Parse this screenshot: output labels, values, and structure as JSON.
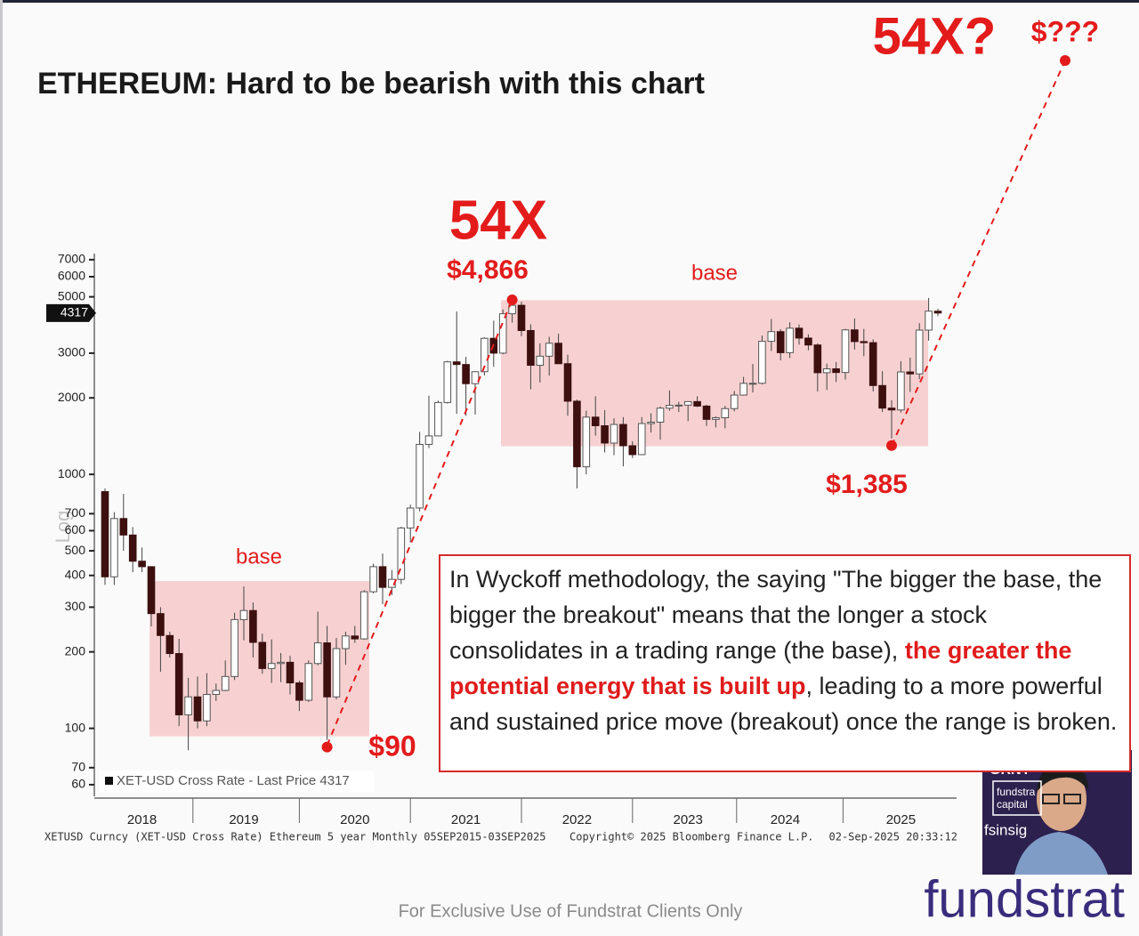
{
  "chart_data": {
    "type": "candlestick",
    "title": "ETHEREUM: Hard to be bearish with this chart",
    "y_label": "Log",
    "log_scale": true,
    "ylim": [
      54,
      7400
    ],
    "yticks": [
      60,
      70,
      100,
      200,
      300,
      400,
      500,
      600,
      700,
      1000,
      2000,
      3000,
      5000,
      6000,
      7000
    ],
    "xticks": [
      {
        "value": 4,
        "label": "2018"
      },
      {
        "value": 15,
        "label": "2019"
      },
      {
        "value": 27,
        "label": "2020"
      },
      {
        "value": 39,
        "label": "2021"
      },
      {
        "value": 51,
        "label": "2022"
      },
      {
        "value": 63,
        "label": "2023"
      },
      {
        "value": 73.5,
        "label": "2024"
      },
      {
        "value": 86,
        "label": "2025"
      }
    ],
    "categories": [
      null,
      null,
      null,
      null,
      null,
      null,
      null,
      null,
      null,
      null,
      null,
      null,
      null,
      null,
      null,
      null,
      null,
      null,
      null,
      null,
      null,
      null,
      null,
      null,
      null,
      null,
      null,
      null,
      null,
      null,
      null,
      null,
      null,
      null,
      null,
      null,
      null,
      null,
      null,
      null,
      null,
      null,
      null,
      null,
      null,
      null,
      null,
      null,
      null,
      null,
      null,
      null,
      null,
      null,
      null,
      null,
      null,
      null,
      null,
      null,
      null,
      null,
      null,
      null,
      null,
      null,
      null,
      null,
      null,
      null,
      null,
      null,
      null,
      null,
      null,
      null,
      null,
      null,
      null,
      null,
      null,
      null,
      null,
      null,
      null,
      null,
      null,
      null,
      null,
      null,
      null
    ],
    "series": [
      {
        "name": "XET-USD Cross Rate - Last Price 4317",
        "up_color": "#ffffff",
        "down_color": "#3d0f0f",
        "open": [
          855,
          395,
          670,
          577,
          455,
          433,
          283,
          232,
          197,
          113,
          133,
          107,
          136,
          141,
          160,
          268,
          291,
          218,
          172,
          180,
          182,
          151,
          129,
          180,
          217,
          133,
          206,
          231,
          225,
          345,
          433,
          359,
          386,
          615,
          737,
          1312,
          1417,
          1918,
          2773,
          2707,
          2275,
          2536,
          3433,
          3001,
          4288,
          4630,
          3683,
          2688,
          2919,
          3282,
          2727,
          1941,
          1071,
          1680,
          1554,
          1328,
          1572,
          1296,
          1196,
          1585,
          1605,
          1822,
          1869,
          1873,
          1934,
          1857,
          1646,
          1671,
          1815,
          2052,
          2282,
          2283,
          3340,
          3647,
          3013,
          3762,
          3440,
          3231,
          2513,
          2603,
          2518,
          3705,
          3332,
          3300,
          2237,
          1823,
          1793,
          2530,
          2486,
          3698,
          4390
        ],
        "high": [
          880,
          710,
          838,
          620,
          515,
          435,
          300,
          240,
          225,
          158,
          160,
          165,
          150,
          185,
          285,
          362,
          313,
          236,
          224,
          198,
          193,
          154,
          185,
          288,
          253,
          227,
          240,
          253,
          350,
          445,
          488,
          420,
          622,
          760,
          1470,
          2040,
          1950,
          2800,
          4380,
          2900,
          2550,
          3470,
          4030,
          4460,
          4866,
          4780,
          3900,
          3280,
          3480,
          3580,
          2960,
          1970,
          1780,
          2030,
          1790,
          1660,
          1680,
          1350,
          1680,
          1740,
          1850,
          2140,
          1930,
          1940,
          2030,
          1880,
          1690,
          1860,
          2130,
          2420,
          2720,
          3520,
          4090,
          3730,
          3970,
          3890,
          3560,
          3280,
          2730,
          2770,
          3740,
          4110,
          3740,
          3400,
          2550,
          1960,
          2790,
          2880,
          3940,
          4950,
          4490
        ],
        "low": [
          367,
          367,
          500,
          412,
          412,
          252,
          167,
          190,
          102,
          82,
          100,
          102,
          128,
          140,
          155,
          222,
          190,
          164,
          151,
          152,
          136,
          117,
          127,
          177,
          90,
          130,
          178,
          217,
          223,
          340,
          308,
          335,
          370,
          540,
          715,
          1270,
          1420,
          1900,
          1730,
          1700,
          1720,
          2450,
          2650,
          2970,
          3960,
          3500,
          2160,
          2300,
          2450,
          2730,
          1700,
          880,
          1000,
          1420,
          1220,
          1190,
          1075,
          1160,
          1190,
          1460,
          1370,
          1780,
          1760,
          1620,
          1840,
          1550,
          1530,
          1520,
          1770,
          2040,
          2100,
          2260,
          3060,
          2810,
          2870,
          3240,
          3080,
          2120,
          2150,
          2310,
          2360,
          3100,
          2920,
          2120,
          1760,
          1385,
          1750,
          2110,
          2370,
          3360,
          4200
        ],
        "close": [
          395,
          670,
          577,
          455,
          433,
          283,
          232,
          197,
          113,
          133,
          107,
          136,
          141,
          160,
          268,
          291,
          218,
          172,
          180,
          182,
          151,
          129,
          180,
          217,
          133,
          206,
          231,
          225,
          345,
          433,
          359,
          386,
          615,
          737,
          1312,
          1417,
          1918,
          2773,
          2707,
          2275,
          2536,
          3433,
          3001,
          4288,
          4630,
          3683,
          2688,
          2919,
          3282,
          2727,
          1941,
          1071,
          1680,
          1554,
          1328,
          1572,
          1296,
          1196,
          1585,
          1605,
          1822,
          1869,
          1873,
          1934,
          1857,
          1646,
          1671,
          1815,
          2052,
          2282,
          2283,
          3340,
          3647,
          3013,
          3762,
          3440,
          3231,
          2513,
          2603,
          2518,
          3705,
          3332,
          3300,
          2237,
          1823,
          1793,
          2530,
          2486,
          3698,
          4390,
          4317
        ]
      }
    ],
    "last_price": 4317,
    "ranges": [
      {
        "label": "base",
        "low": 93,
        "high": 380
      },
      {
        "label": "base",
        "low": 1290,
        "high": 4850
      }
    ],
    "annotations": [
      {
        "label": "$90",
        "value": 90
      },
      {
        "label": "$4,866",
        "value": 4866,
        "heading": "54X"
      },
      {
        "label": "$1,385",
        "value": 1385
      }
    ],
    "target": {
      "heading": "54X?",
      "label": "$???"
    },
    "color": "#e31b1b"
  },
  "slide": {
    "text_box": {
      "before": "In Wyckoff methodology, the saying \"The bigger the base, the bigger the breakout\" means that the longer a stock consolidates in a trading range (the base), ",
      "emphasis": "the greater the potential energy that is built up",
      "after": ", leading to a more powerful and sustained price move (breakout) once the range is broken."
    },
    "source": "XETUSD Curncy (XET-USD Cross Rate) Ethereum 5 year Monthly 05SEP2015-03SEP2025",
    "copyright": "Copyright© 2025 Bloomberg Finance L.P.",
    "timestamp": "02-Sep-2025 20:33:12",
    "footer_note": "For Exclusive Use of Fundstrat Clients Only",
    "logo": "fundstrat",
    "video": {
      "ticker": "GRNY",
      "brand": [
        "fundstra",
        "capital"
      ],
      "channel": "fsinsig"
    }
  }
}
